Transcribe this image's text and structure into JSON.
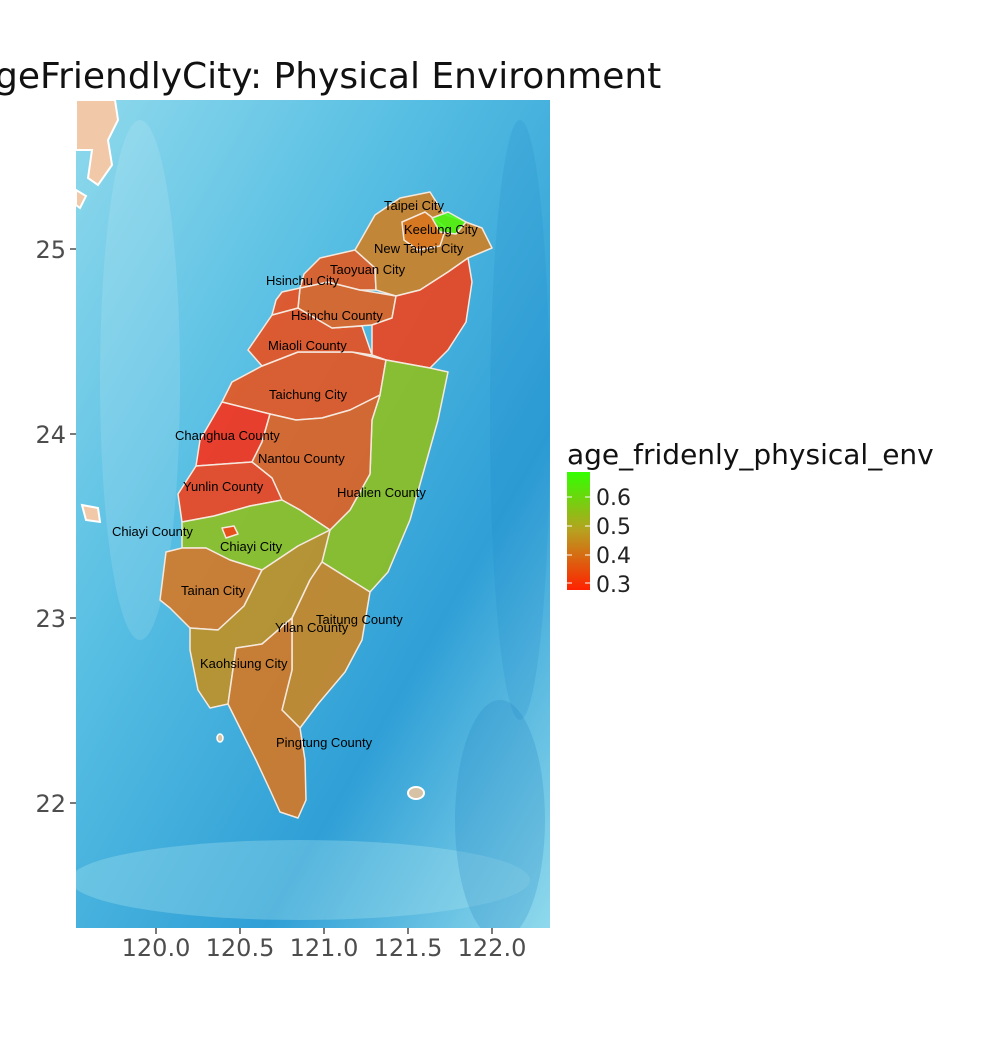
{
  "title": "geFriendlyCity: Physical Environment",
  "legend": {
    "title": "age_fridenly_physical_env",
    "labels": [
      "0.6",
      "0.5",
      "0.4",
      "0.3"
    ],
    "color_high": "#33ff00",
    "color_low": "#ff2200"
  },
  "axes": {
    "x_ticks": [
      "120.0",
      "120.5",
      "121.0",
      "121.5",
      "122.0"
    ],
    "y_ticks": [
      "25",
      "24",
      "23",
      "22"
    ]
  },
  "colors": {
    "sea_light": "#8fd9ec",
    "sea_mid": "#58bfe3",
    "sea_deep": "#2f9fd6",
    "land_neighbor": "#f2c9a8",
    "border": "#f5e9df"
  },
  "regions": [
    {
      "name": "Taipei City",
      "value": 0.4
    },
    {
      "name": "Keelung City",
      "value": 0.67
    },
    {
      "name": "New Taipei City",
      "value": 0.42
    },
    {
      "name": "Taoyuan City",
      "value": 0.35
    },
    {
      "name": "Hsinchu City",
      "value": 0.33
    },
    {
      "name": "Hsinchu County",
      "value": 0.36
    },
    {
      "name": "Yilan County",
      "value": 0.31
    },
    {
      "name": "Miaoli County",
      "value": 0.33
    },
    {
      "name": "Taichung City",
      "value": 0.34
    },
    {
      "name": "Changhua County",
      "value": 0.28
    },
    {
      "name": "Nantou County",
      "value": 0.36
    },
    {
      "name": "Hualien County",
      "value": 0.58
    },
    {
      "name": "Yunlin County",
      "value": 0.31
    },
    {
      "name": "Chiayi County",
      "value": 0.58
    },
    {
      "name": "Chiayi City",
      "value": 0.31
    },
    {
      "name": "Tainan City",
      "value": 0.4
    },
    {
      "name": "Taitung County",
      "value": 0.44
    },
    {
      "name": "Kaohsiung City",
      "value": 0.47
    },
    {
      "name": "Pingtung County",
      "value": 0.4
    }
  ]
}
